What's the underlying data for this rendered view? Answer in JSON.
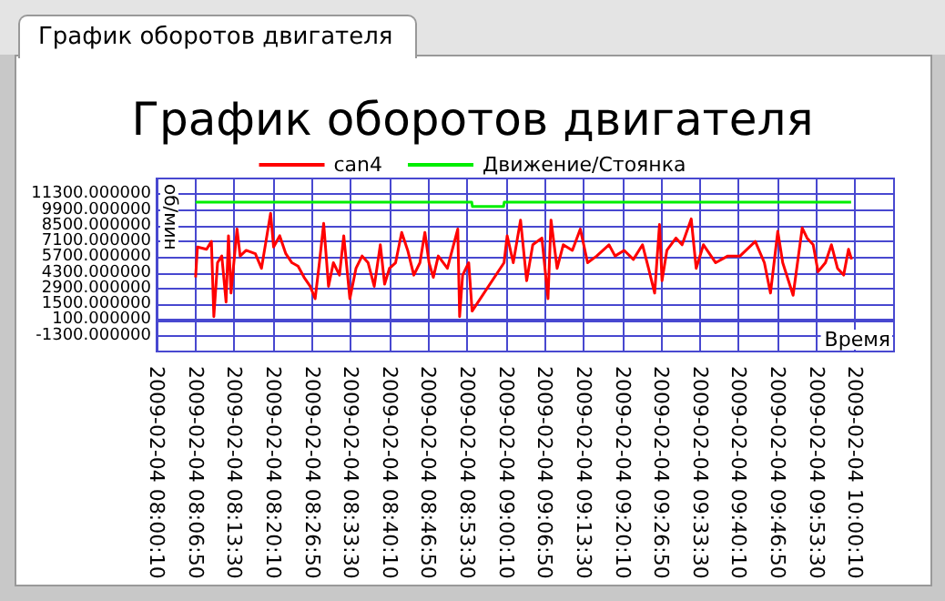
{
  "chart_data": {
    "type": "line",
    "title": "График оборотов двигателя",
    "xlabel": "Время",
    "ylabel": "об/мин",
    "annotations": [
      "График оборотов двигателя"
    ],
    "series": [
      {
        "name": "can4",
        "color": "#ff0000",
        "x": [
          "2009-02-04T08:06:52",
          "2009-02-04T08:07:11",
          "2009-02-04T08:08:45",
          "2009-02-04T08:09:35",
          "2009-02-04T08:10:00",
          "2009-02-04T08:10:38",
          "2009-02-04T08:11:22",
          "2009-02-04T08:12:06",
          "2009-02-04T08:12:31",
          "2009-02-04T08:12:57",
          "2009-02-04T08:13:59",
          "2009-02-04T08:14:31",
          "2009-02-04T08:15:33",
          "2009-02-04T08:17:08",
          "2009-02-04T08:18:11",
          "2009-02-04T08:19:45",
          "2009-02-04T08:20:16",
          "2009-02-04T08:21:19",
          "2009-02-04T08:22:22",
          "2009-02-04T08:23:25",
          "2009-02-04T08:24:28",
          "2009-02-04T08:25:30",
          "2009-02-04T08:26:33",
          "2009-02-04T08:27:24",
          "2009-02-04T08:28:08",
          "2009-02-04T08:28:52",
          "2009-02-04T08:29:42",
          "2009-02-04T08:30:32",
          "2009-02-04T08:31:35",
          "2009-02-04T08:32:19",
          "2009-02-04T08:33:22",
          "2009-02-04T08:34:25",
          "2009-02-04T08:35:28",
          "2009-02-04T08:36:30",
          "2009-02-04T08:37:33",
          "2009-02-04T08:38:36",
          "2009-02-04T08:39:20",
          "2009-02-04T08:40:10",
          "2009-02-04T08:41:13",
          "2009-02-04T08:42:16",
          "2009-02-04T08:43:18",
          "2009-02-04T08:44:21",
          "2009-02-04T08:45:24",
          "2009-02-04T08:46:15",
          "2009-02-04T08:46:58",
          "2009-02-04T08:47:42",
          "2009-02-04T08:48:33",
          "2009-02-04T08:50:07",
          "2009-02-04T08:51:54",
          "2009-02-04T08:52:13",
          "2009-02-04T08:52:44",
          "2009-02-04T08:53:47",
          "2009-02-04T08:54:22",
          "2009-02-04T08:59:51",
          "2009-02-04T09:00:23",
          "2009-02-04T09:01:26",
          "2009-02-04T09:02:41",
          "2009-02-04T09:03:44",
          "2009-02-04T09:04:47",
          "2009-02-04T09:06:21",
          "2009-02-04T09:07:24",
          "2009-02-04T09:07:55",
          "2009-02-04T09:08:58",
          "2009-02-04T09:10:01",
          "2009-02-04T09:11:35",
          "2009-02-04T09:12:57",
          "2009-02-04T09:14:12",
          "2009-02-04T09:15:46",
          "2009-02-04T09:17:52",
          "2009-02-04T09:18:55",
          "2009-02-04T09:20:29",
          "2009-02-04T09:22:04",
          "2009-02-04T09:23:38",
          "2009-02-04T09:24:40",
          "2009-02-04T09:25:43",
          "2009-02-04T09:26:33",
          "2009-02-04T09:26:59",
          "2009-02-04T09:27:49",
          "2009-02-04T09:29:23",
          "2009-02-04T09:30:26",
          "2009-02-04T09:32:00",
          "2009-02-04T09:32:51",
          "2009-02-04T09:34:06",
          "2009-02-04T09:36:12",
          "2009-02-04T09:38:17",
          "2009-02-04T09:40:23",
          "2009-02-04T09:43:00",
          "2009-02-04T09:44:34",
          "2009-02-04T09:45:37",
          "2009-02-04T09:46:52",
          "2009-02-04T09:47:43",
          "2009-02-04T09:49:30",
          "2009-02-04T09:51:04",
          "2009-02-04T09:51:54",
          "2009-02-04T09:52:57",
          "2009-02-04T09:53:47",
          "2009-02-04T09:55:03",
          "2009-02-04T09:56:05",
          "2009-02-04T09:57:08",
          "2009-02-04T09:58:11",
          "2009-02-04T09:59:01",
          "2009-02-04T09:59:33"
        ],
        "values": [
          3900,
          6600,
          6400,
          7100,
          400,
          5200,
          5800,
          1700,
          7600,
          2500,
          8200,
          5800,
          6300,
          6000,
          4700,
          9600,
          6600,
          7600,
          6000,
          5200,
          4900,
          3900,
          3100,
          2000,
          5200,
          8700,
          3100,
          5200,
          4100,
          7600,
          2000,
          4700,
          5800,
          5200,
          3100,
          6800,
          3300,
          4700,
          5200,
          7900,
          6300,
          4100,
          5200,
          7900,
          5200,
          3900,
          5800,
          4700,
          8200,
          400,
          4100,
          5200,
          900,
          5200,
          7600,
          5200,
          9000,
          3600,
          6800,
          7400,
          2000,
          9000,
          4700,
          6800,
          6300,
          8200,
          5200,
          5800,
          6800,
          5800,
          6300,
          5500,
          6800,
          4700,
          2500,
          8600,
          3600,
          6300,
          7400,
          6800,
          9100,
          4700,
          6800,
          5200,
          5800,
          5800,
          7100,
          5200,
          2500,
          8000,
          5200,
          2300,
          8300,
          7400,
          6800,
          4400,
          5200,
          6800,
          4700,
          4100,
          6400,
          5500
        ]
      },
      {
        "name": "Движение/Стоянка",
        "color": "#00ee00",
        "x": [
          "2009-02-04T08:06:52",
          "2009-02-04T08:54:18",
          "2009-02-04T08:54:25",
          "2009-02-04T08:59:46",
          "2009-02-04T08:59:53",
          "2009-02-04T09:59:28"
        ],
        "values": [
          10600,
          10600,
          10200,
          10200,
          10600,
          10600
        ]
      }
    ],
    "xlim": [
      "2009-02-04T08:00:10",
      "2009-02-04T10:06:50"
    ],
    "xticks": [
      {
        "value": "2009-02-04T08:00:10",
        "label": "2009-02-04 08:00:10"
      },
      {
        "value": "2009-02-04T08:06:50",
        "label": "2009-02-04 08:06:50"
      },
      {
        "value": "2009-02-04T08:13:30",
        "label": "2009-02-04 08:13:30"
      },
      {
        "value": "2009-02-04T08:20:10",
        "label": "2009-02-04 08:20:10"
      },
      {
        "value": "2009-02-04T08:26:50",
        "label": "2009-02-04 08:26:50"
      },
      {
        "value": "2009-02-04T08:33:30",
        "label": "2009-02-04 08:33:30"
      },
      {
        "value": "2009-02-04T08:40:10",
        "label": "2009-02-04 08:40:10"
      },
      {
        "value": "2009-02-04T08:46:50",
        "label": "2009-02-04 08:46:50"
      },
      {
        "value": "2009-02-04T08:53:30",
        "label": "2009-02-04 08:53:30"
      },
      {
        "value": "2009-02-04T09:00:10",
        "label": "2009-02-04 09:00:10"
      },
      {
        "value": "2009-02-04T09:06:50",
        "label": "2009-02-04 09:06:50"
      },
      {
        "value": "2009-02-04T09:13:30",
        "label": "2009-02-04 09:13:30"
      },
      {
        "value": "2009-02-04T09:20:10",
        "label": "2009-02-04 09:20:10"
      },
      {
        "value": "2009-02-04T09:26:50",
        "label": "2009-02-04 09:26:50"
      },
      {
        "value": "2009-02-04T09:33:30",
        "label": "2009-02-04 09:33:30"
      },
      {
        "value": "2009-02-04T09:40:10",
        "label": "2009-02-04 09:40:10"
      },
      {
        "value": "2009-02-04T09:46:50",
        "label": "2009-02-04 09:46:50"
      },
      {
        "value": "2009-02-04T09:53:30",
        "label": "2009-02-04 09:53:30"
      },
      {
        "value": "2009-02-04T10:00:10",
        "label": "2009-02-04 10:00:10"
      }
    ],
    "ylim": [
      -2700,
      12700
    ],
    "yticks": [
      {
        "value": -1300,
        "label": "-1300.000000"
      },
      {
        "value": 100,
        "label": "100.000000"
      },
      {
        "value": 1500,
        "label": "1500.000000"
      },
      {
        "value": 2900,
        "label": "2900.000000"
      },
      {
        "value": 4300,
        "label": "4300.000000"
      },
      {
        "value": 5700,
        "label": "5700.000000"
      },
      {
        "value": 7100,
        "label": "7100.000000"
      },
      {
        "value": 8500,
        "label": "8500.000000"
      },
      {
        "value": 9900,
        "label": "9900.000000"
      },
      {
        "value": 11300,
        "label": "11300.000000"
      }
    ],
    "grid": true,
    "legend": "top",
    "marker": "none"
  }
}
